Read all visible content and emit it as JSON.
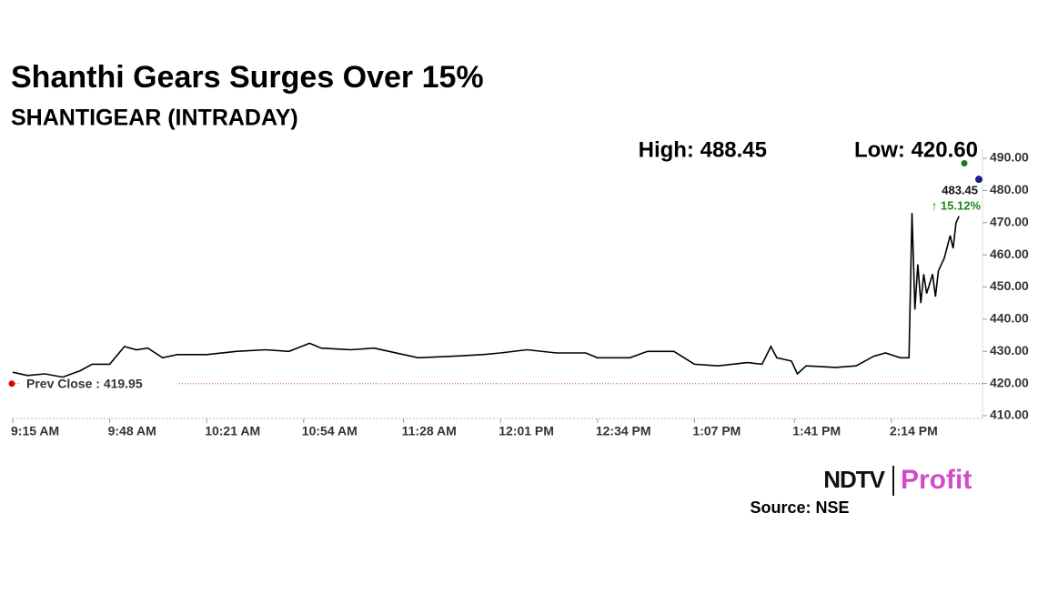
{
  "chart_data": {
    "type": "line",
    "title": "Shanthi Gears Surges Over 15%",
    "subtitle": "SHANTIGEAR (INTRADAY)",
    "high_label": "High: 488.45",
    "low_label": "Low: 420.60",
    "high": 488.45,
    "last_price": 483.45,
    "last_price_label": "483.45",
    "change_label": "↑ 15.12%",
    "prev_close": 419.95,
    "prev_close_label": "Prev Close : 419.95",
    "source": "Source: NSE",
    "logo_left": "NDTV",
    "logo_right": "Profit",
    "x": [
      "9:15 AM",
      "9:20 AM",
      "9:26 AM",
      "9:32 AM",
      "9:38 AM",
      "9:42 AM",
      "9:48 AM",
      "9:53 AM",
      "9:57 AM",
      "10:01 AM",
      "10:06 AM",
      "10:11 AM",
      "10:21 AM",
      "10:31 AM",
      "10:41 AM",
      "10:49 AM",
      "10:56 AM",
      "11:00 AM",
      "11:10 AM",
      "11:18 AM",
      "11:28 AM",
      "11:33 AM",
      "11:45 AM",
      "11:55 AM",
      "12:01 PM",
      "12:10 PM",
      "12:20 PM",
      "12:30 PM",
      "12:34 PM",
      "12:45 PM",
      "12:51 PM",
      "1:00 PM",
      "1:07 PM",
      "1:15 PM",
      "1:25 PM",
      "1:30 PM",
      "1:33 PM",
      "1:35 PM",
      "1:40 PM",
      "1:42 PM",
      "1:45 PM",
      "1:55 PM",
      "2:02 PM",
      "2:08 PM",
      "2:12 PM",
      "2:17 PM",
      "2:20 PM",
      "2:21 PM",
      "2:22 PM",
      "2:23 PM",
      "2:24 PM",
      "2:25 PM",
      "2:26 PM",
      "2:28 PM",
      "2:29 PM",
      "2:30 PM",
      "2:32 PM",
      "2:34 PM",
      "2:35 PM",
      "2:36 PM",
      "2:37 PM"
    ],
    "series": [
      {
        "name": "SHANTIGEAR",
        "color": "#000000",
        "values": [
          423.5,
          422.5,
          423.0,
          422.0,
          424.0,
          426.0,
          426.0,
          431.5,
          430.5,
          431.0,
          428.0,
          429.0,
          429.0,
          430.0,
          430.5,
          430.0,
          432.5,
          431.0,
          430.5,
          431.0,
          429.0,
          428.0,
          428.5,
          429.0,
          429.5,
          430.5,
          429.5,
          429.5,
          428.0,
          428.0,
          430.0,
          430.0,
          426.0,
          425.5,
          426.5,
          426.0,
          431.5,
          428.0,
          427.0,
          423.0,
          425.5,
          425.0,
          425.5,
          428.5,
          429.5,
          428.0,
          428.0,
          473.0,
          443.0,
          457.0,
          445.0,
          454.0,
          448.0,
          454.0,
          447.0,
          455.0,
          459.0,
          466.0,
          462.0,
          470.0,
          472.0
        ]
      }
    ],
    "xlim": [
      "9:15 AM",
      "2:45 PM"
    ],
    "xticks": [
      "9:15 AM",
      "9:48 AM",
      "10:21 AM",
      "10:54 AM",
      "11:28 AM",
      "12:01 PM",
      "12:34 PM",
      "1:07 PM",
      "1:41 PM",
      "2:14 PM"
    ],
    "ylim": [
      410,
      490
    ],
    "yticks": [
      {
        "value": 410,
        "label": "410.00"
      },
      {
        "value": 420,
        "label": "420.00"
      },
      {
        "value": 430,
        "label": "430.00"
      },
      {
        "value": 440,
        "label": "440.00"
      },
      {
        "value": 450,
        "label": "450.00"
      },
      {
        "value": 460,
        "label": "460.00"
      },
      {
        "value": 470,
        "label": "470.00"
      },
      {
        "value": 480,
        "label": "480.00"
      },
      {
        "value": 490,
        "label": "490.00"
      }
    ]
  }
}
